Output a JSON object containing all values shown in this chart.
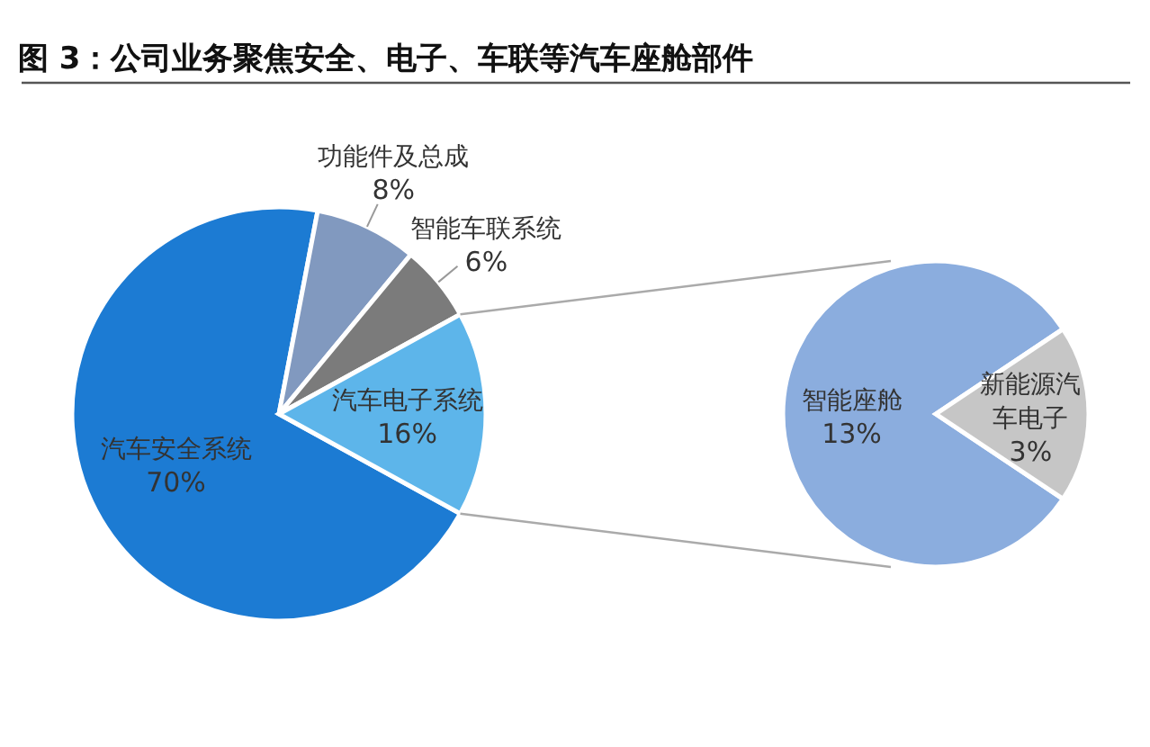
{
  "chart_data": [
    {
      "type": "pie",
      "title": "图 3：公司业务聚焦安全、电子、车联等汽车座舱部件",
      "categories": [
        "汽车安全系统",
        "功能件及总成",
        "智能车联系统",
        "汽车电子系统"
      ],
      "values": [
        70,
        8,
        6,
        16
      ],
      "value_labels": [
        "70%",
        "8%",
        "6%",
        "16%"
      ],
      "colors": [
        "#1c7bd3",
        "#8199bf",
        "#7b7b7b",
        "#5db5ea"
      ]
    },
    {
      "type": "pie",
      "categories": [
        "智能座舱",
        "新能源汽车电子"
      ],
      "values": [
        13,
        3
      ],
      "value_labels": [
        "13%",
        "3%"
      ],
      "colors": [
        "#8badde",
        "#c6c6c6"
      ]
    }
  ]
}
